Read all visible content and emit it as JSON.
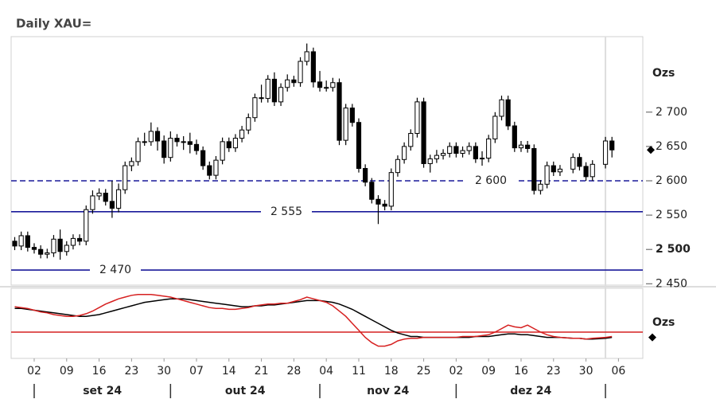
{
  "chart_data": {
    "type": "candlestick",
    "title": "Daily XAU=",
    "y_label": "Ozs",
    "x": [
      "2024-08-28",
      "2024-08-29",
      "2024-08-30",
      "2024-09-02",
      "2024-09-03",
      "2024-09-04",
      "2024-09-05",
      "2024-09-06",
      "2024-09-09",
      "2024-09-10",
      "2024-09-11",
      "2024-09-12",
      "2024-09-13",
      "2024-09-16",
      "2024-09-17",
      "2024-09-18",
      "2024-09-19",
      "2024-09-20",
      "2024-09-23",
      "2024-09-24",
      "2024-09-25",
      "2024-09-26",
      "2024-09-27",
      "2024-09-30",
      "2024-10-01",
      "2024-10-02",
      "2024-10-03",
      "2024-10-04",
      "2024-10-07",
      "2024-10-08",
      "2024-10-09",
      "2024-10-10",
      "2024-10-11",
      "2024-10-14",
      "2024-10-15",
      "2024-10-16",
      "2024-10-17",
      "2024-10-18",
      "2024-10-21",
      "2024-10-22",
      "2024-10-23",
      "2024-10-24",
      "2024-10-25",
      "2024-10-28",
      "2024-10-29",
      "2024-10-30",
      "2024-10-31",
      "2024-11-01",
      "2024-11-04",
      "2024-11-05",
      "2024-11-06",
      "2024-11-07",
      "2024-11-08",
      "2024-11-11",
      "2024-11-12",
      "2024-11-13",
      "2024-11-14",
      "2024-11-15",
      "2024-11-18",
      "2024-11-19",
      "2024-11-20",
      "2024-11-21",
      "2024-11-22",
      "2024-11-25",
      "2024-11-26",
      "2024-11-27",
      "2024-11-28",
      "2024-11-29",
      "2024-12-02",
      "2024-12-03",
      "2024-12-04",
      "2024-12-05",
      "2024-12-06",
      "2024-12-09",
      "2024-12-10",
      "2024-12-11",
      "2024-12-12",
      "2024-12-13",
      "2024-12-16",
      "2024-12-17",
      "2024-12-18",
      "2024-12-19",
      "2024-12-20",
      "2024-12-23",
      "2024-12-24",
      "2024-12-26",
      "2024-12-27",
      "2024-12-30",
      "2024-12-31",
      "2025-01-02",
      "2025-01-03"
    ],
    "open": [
      2512,
      2505,
      2520,
      2503,
      2500,
      2493,
      2495,
      2515,
      2497,
      2506,
      2516,
      2512,
      2558,
      2578,
      2582,
      2570,
      2560,
      2587,
      2622,
      2628,
      2657,
      2657,
      2672,
      2658,
      2634,
      2662,
      2657,
      2657,
      2653,
      2644,
      2622,
      2608,
      2630,
      2657,
      2648,
      2662,
      2674,
      2692,
      2721,
      2720,
      2748,
      2715,
      2736,
      2747,
      2743,
      2774,
      2788,
      2744,
      2736,
      2736,
      2743,
      2659,
      2706,
      2685,
      2618,
      2598,
      2573,
      2566,
      2563,
      2612,
      2631,
      2650,
      2669,
      2715,
      2625,
      2632,
      2637,
      2640,
      2650,
      2640,
      2644,
      2650,
      2632,
      2633,
      2661,
      2694,
      2718,
      2680,
      2648,
      2652,
      2647,
      2586,
      2595,
      2622,
      2613,
      2617,
      2634,
      2621,
      2606,
      2624,
      2658
    ],
    "high": [
      2518,
      2526,
      2526,
      2509,
      2506,
      2501,
      2521,
      2529,
      2512,
      2522,
      2522,
      2564,
      2586,
      2589,
      2588,
      2600,
      2596,
      2628,
      2634,
      2663,
      2670,
      2685,
      2678,
      2666,
      2672,
      2668,
      2665,
      2670,
      2660,
      2650,
      2628,
      2636,
      2663,
      2663,
      2668,
      2680,
      2698,
      2727,
      2740,
      2754,
      2758,
      2742,
      2755,
      2753,
      2780,
      2800,
      2794,
      2760,
      2746,
      2750,
      2749,
      2712,
      2712,
      2691,
      2624,
      2604,
      2579,
      2572,
      2618,
      2637,
      2656,
      2675,
      2721,
      2721,
      2638,
      2645,
      2646,
      2656,
      2656,
      2650,
      2656,
      2656,
      2643,
      2667,
      2700,
      2724,
      2724,
      2686,
      2658,
      2658,
      2653,
      2601,
      2628,
      2628,
      2623,
      2640,
      2640,
      2627,
      2630,
      2664,
      2664
    ],
    "low": [
      2499,
      2499,
      2497,
      2494,
      2487,
      2487,
      2489,
      2485,
      2491,
      2500,
      2506,
      2506,
      2552,
      2572,
      2564,
      2546,
      2554,
      2581,
      2614,
      2622,
      2651,
      2651,
      2644,
      2625,
      2628,
      2650,
      2645,
      2640,
      2638,
      2616,
      2602,
      2602,
      2624,
      2642,
      2642,
      2656,
      2668,
      2686,
      2714,
      2714,
      2709,
      2709,
      2730,
      2737,
      2737,
      2768,
      2736,
      2730,
      2730,
      2730,
      2652,
      2652,
      2679,
      2612,
      2592,
      2567,
      2537,
      2557,
      2557,
      2606,
      2625,
      2644,
      2663,
      2619,
      2612,
      2626,
      2631,
      2634,
      2634,
      2634,
      2638,
      2626,
      2622,
      2627,
      2655,
      2688,
      2674,
      2642,
      2642,
      2641,
      2580,
      2580,
      2589,
      2607,
      2607,
      2611,
      2615,
      2600,
      2600,
      2618,
      2634
    ],
    "close": [
      2505,
      2520,
      2503,
      2500,
      2493,
      2495,
      2515,
      2497,
      2506,
      2516,
      2512,
      2558,
      2578,
      2582,
      2570,
      2560,
      2587,
      2622,
      2628,
      2657,
      2657,
      2672,
      2658,
      2634,
      2662,
      2657,
      2657,
      2653,
      2644,
      2622,
      2608,
      2630,
      2657,
      2648,
      2662,
      2674,
      2692,
      2721,
      2720,
      2748,
      2715,
      2736,
      2747,
      2743,
      2774,
      2788,
      2744,
      2736,
      2736,
      2743,
      2659,
      2706,
      2685,
      2618,
      2598,
      2573,
      2566,
      2563,
      2612,
      2631,
      2650,
      2669,
      2715,
      2625,
      2632,
      2637,
      2640,
      2650,
      2640,
      2644,
      2650,
      2632,
      2633,
      2661,
      2694,
      2718,
      2680,
      2648,
      2652,
      2647,
      2586,
      2595,
      2622,
      2613,
      2617,
      2634,
      2621,
      2606,
      2624,
      2658,
      2645
    ],
    "up_color": "#ffffff",
    "down_color": "#000000",
    "ylim": [
      2448,
      2810
    ],
    "yticks": [
      {
        "value": 2450,
        "label": "2 450"
      },
      {
        "value": 2500,
        "label": "2 500",
        "bold": true
      },
      {
        "value": 2550,
        "label": "2 550"
      },
      {
        "value": 2600,
        "label": "2 600"
      },
      {
        "value": 2650,
        "label": "2 650"
      },
      {
        "value": 2700,
        "label": "2 700"
      }
    ],
    "levels": [
      {
        "value": 2600,
        "label": "2 600",
        "style": "dashed",
        "color": "#1a1a9a"
      },
      {
        "value": 2555,
        "label": "2 555",
        "style": "solid",
        "color": "#1a1a9a"
      },
      {
        "value": 2470,
        "label": "2 470",
        "style": "solid",
        "color": "#1a1a9a"
      }
    ],
    "xticks": [
      {
        "value": "2024-09-02",
        "label": "02"
      },
      {
        "value": "2024-09-09",
        "label": "09"
      },
      {
        "value": "2024-09-16",
        "label": "16"
      },
      {
        "value": "2024-09-23",
        "label": "23"
      },
      {
        "value": "2024-09-30",
        "label": "30"
      },
      {
        "value": "2024-10-07",
        "label": "07"
      },
      {
        "value": "2024-10-14",
        "label": "14"
      },
      {
        "value": "2024-10-21",
        "label": "21"
      },
      {
        "value": "2024-10-28",
        "label": "28"
      },
      {
        "value": "2024-11-04",
        "label": "04"
      },
      {
        "value": "2024-11-11",
        "label": "11"
      },
      {
        "value": "2024-11-18",
        "label": "18"
      },
      {
        "value": "2024-11-25",
        "label": "25"
      },
      {
        "value": "2024-12-02",
        "label": "02"
      },
      {
        "value": "2024-12-09",
        "label": "09"
      },
      {
        "value": "2024-12-16",
        "label": "16"
      },
      {
        "value": "2024-12-23",
        "label": "23"
      },
      {
        "value": "2024-12-30",
        "label": "30"
      },
      {
        "value": "2025-01-06",
        "label": "06"
      }
    ],
    "month_labels": [
      "set 24",
      "out 24",
      "nov 24",
      "dez 24"
    ],
    "month_starts": [
      "2024-09-02",
      "2024-10-01",
      "2024-11-01",
      "2024-12-02",
      "2025-01-02"
    ],
    "indicator": {
      "y_label": "Ozs",
      "ylim": [
        -30,
        50
      ],
      "zero": 0,
      "zero_color": "#d62020",
      "series": [
        {
          "color": "#000000",
          "values": [
            27,
            27,
            26,
            25,
            24,
            23,
            22,
            21,
            20,
            19,
            18,
            18,
            19,
            20,
            22,
            24,
            26,
            28,
            30,
            32,
            34,
            35,
            36,
            37,
            38,
            38,
            38,
            37,
            36,
            35,
            34,
            33,
            32,
            31,
            30,
            29,
            29,
            30,
            30,
            31,
            31,
            32,
            33,
            34,
            35,
            36,
            36,
            36,
            35,
            34,
            32,
            29,
            26,
            22,
            18,
            14,
            10,
            6,
            2,
            -1,
            -3,
            -5,
            -5,
            -6,
            -6,
            -6,
            -6,
            -6,
            -6,
            -6,
            -6,
            -5,
            -5,
            -5,
            -4,
            -3,
            -2,
            -2,
            -3,
            -3,
            -4,
            -5,
            -6,
            -6,
            -6,
            -7,
            -7,
            -8,
            -8,
            -7,
            -6
          ]
        },
        {
          "color": "#d62020",
          "values": [
            29,
            28,
            27,
            25,
            23,
            22,
            20,
            19,
            18,
            18,
            19,
            21,
            24,
            28,
            32,
            35,
            38,
            40,
            42,
            43,
            43,
            43,
            42,
            41,
            40,
            38,
            36,
            34,
            32,
            30,
            28,
            27,
            27,
            26,
            26,
            27,
            28,
            30,
            31,
            32,
            32,
            33,
            33,
            35,
            37,
            40,
            38,
            36,
            34,
            30,
            24,
            18,
            10,
            2,
            -6,
            -12,
            -16,
            -16,
            -14,
            -10,
            -8,
            -7,
            -7,
            -6,
            -6,
            -6,
            -6,
            -6,
            -6,
            -5,
            -5,
            -5,
            -4,
            -3,
            0,
            4,
            8,
            6,
            5,
            8,
            4,
            0,
            -3,
            -5,
            -6,
            -7,
            -7,
            -8,
            -7,
            -6,
            -5
          ]
        }
      ]
    }
  }
}
